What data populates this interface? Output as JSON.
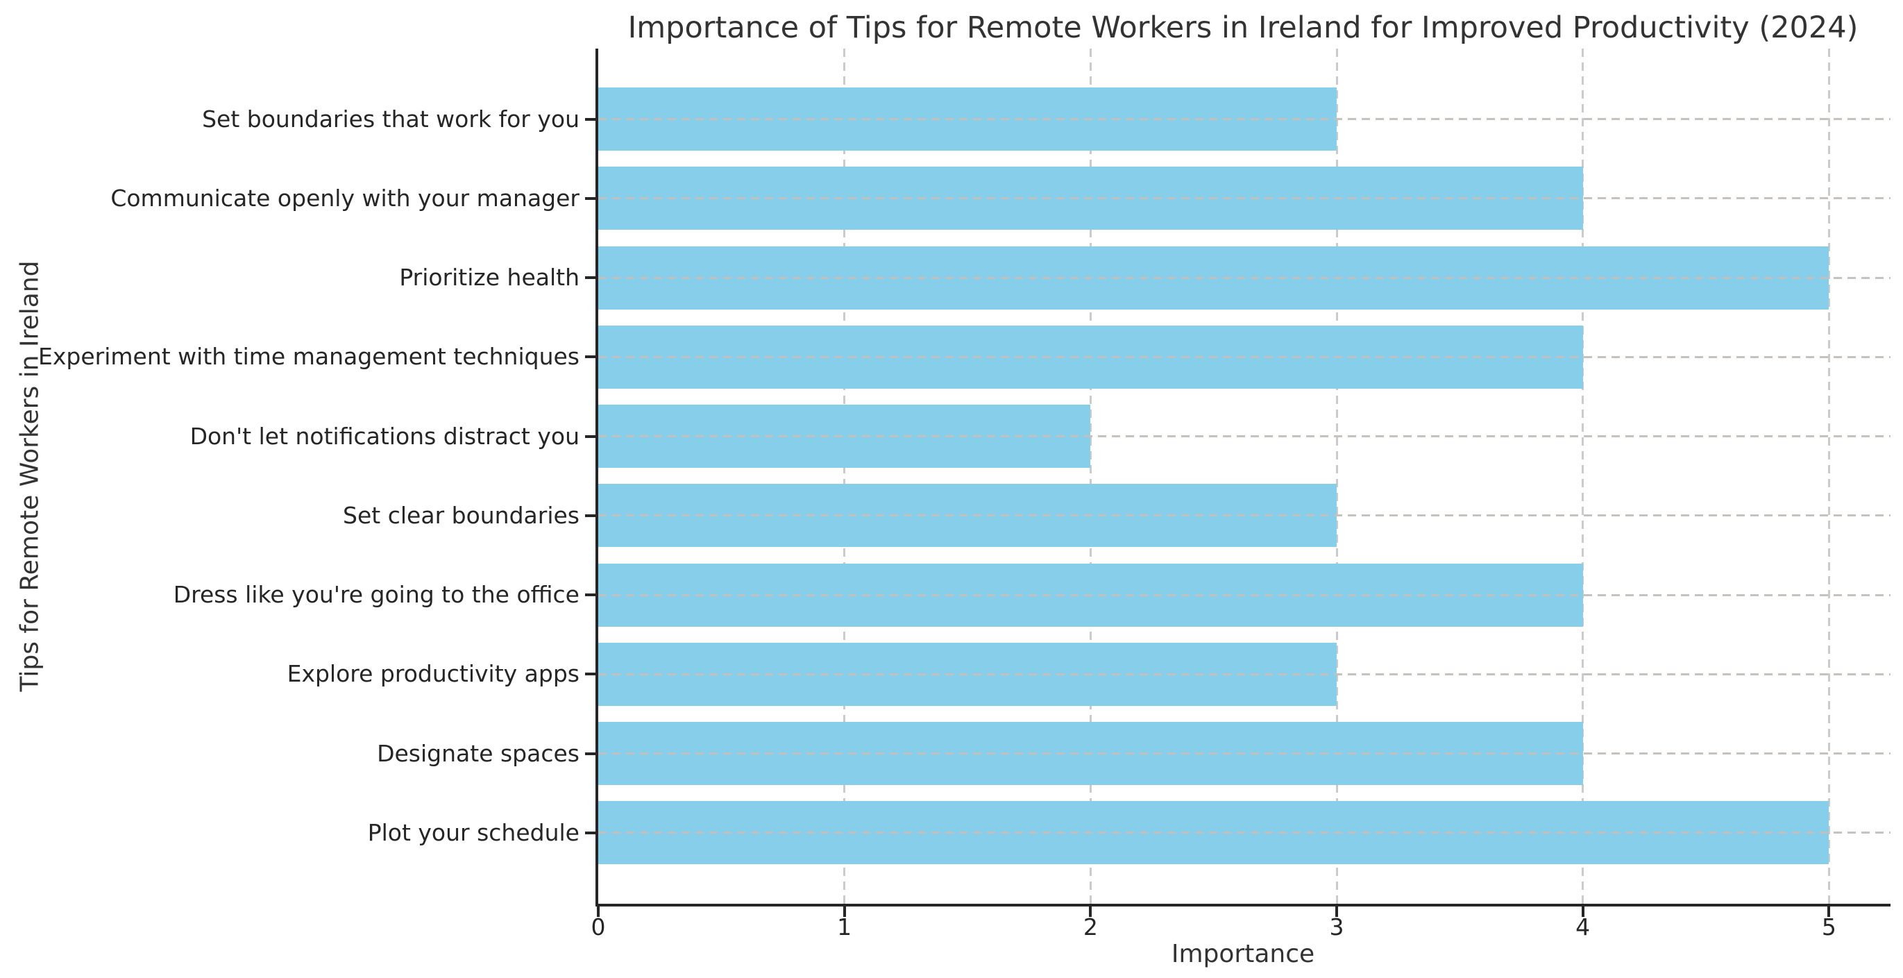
{
  "chart_data": {
    "type": "bar",
    "orientation": "horizontal",
    "title": "Importance of Tips for Remote Workers in Ireland for Improved Productivity (2024)",
    "xlabel": "Importance",
    "ylabel": "Tips for Remote Workers in Ireland",
    "categories": [
      "Set boundaries that work for you",
      "Communicate openly with your manager",
      "Prioritize health",
      "Experiment with time management techniques",
      "Don't let notifications distract you",
      "Set clear boundaries",
      "Dress like you're going to the office",
      "Explore productivity apps",
      "Designate spaces",
      "Plot your schedule"
    ],
    "values": [
      3,
      4,
      5,
      4,
      2,
      3,
      4,
      3,
      4,
      5
    ],
    "xticks": [
      "0",
      "1",
      "2",
      "3",
      "4",
      "5"
    ],
    "xlim": [
      0,
      5.25
    ],
    "grid": "dashed",
    "legend": "none",
    "bar_color": "#87ceeb",
    "grid_color": "#cbcbcb",
    "axis_color": "#262626",
    "text_color": "#333333"
  }
}
